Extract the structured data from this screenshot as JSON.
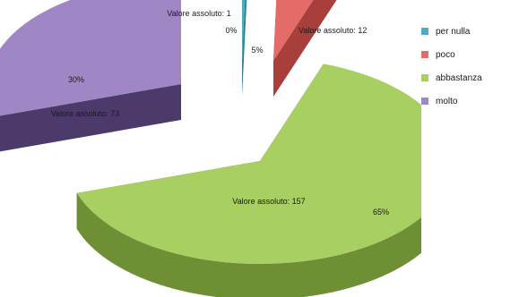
{
  "chart_data": {
    "type": "pie",
    "style": "3d-exploded",
    "legend_position": "right",
    "slices": [
      {
        "name": "per nulla",
        "value": 1,
        "percent_label": "0%",
        "abs_label": "Valore assoluto: 1",
        "color": "#4bacc6",
        "side_color": "#2f7f94"
      },
      {
        "name": "poco",
        "value": 12,
        "percent_label": "5%",
        "abs_label": "Valore assoluto: 12",
        "color": "#e46c68",
        "side_color": "#a93f3b"
      },
      {
        "name": "abbastanza",
        "value": 157,
        "percent_label": "65%",
        "abs_label": "Valore assoluto: 157",
        "color": "#a8cf62",
        "side_color": "#6f8f35"
      },
      {
        "name": "molto",
        "value": 73,
        "percent_label": "30%",
        "abs_label": "Valore assoluto: 73",
        "color": "#9f86c4",
        "side_color": "#4b3a6a"
      }
    ]
  }
}
